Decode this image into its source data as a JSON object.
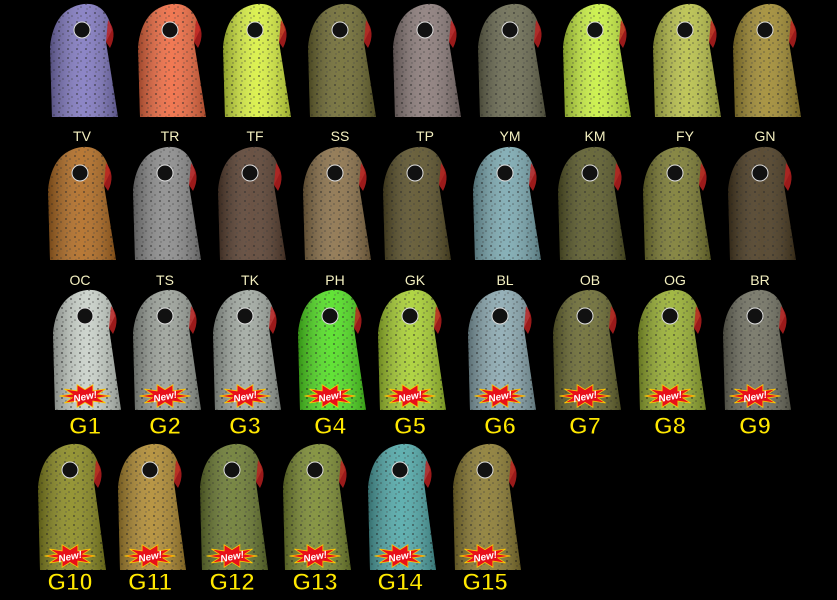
{
  "rows": [
    {
      "items": [
        {
          "label": "TV",
          "color": "#8078c0"
        },
        {
          "label": "TR",
          "color": "#f06a40"
        },
        {
          "label": "TF",
          "color": "#d8f040"
        },
        {
          "label": "SS",
          "color": "#6e6a30"
        },
        {
          "label": "TP",
          "color": "#8a7a78"
        },
        {
          "label": "YM",
          "color": "#6a6a50"
        },
        {
          "label": "KM",
          "color": "#c8f040"
        },
        {
          "label": "FY",
          "color": "#b8c048"
        },
        {
          "label": "GN",
          "color": "#a08a30"
        }
      ]
    },
    {
      "items": [
        {
          "label": "OC",
          "color": "#b06a20"
        },
        {
          "label": "TS",
          "color": "#8a8a8a"
        },
        {
          "label": "TK",
          "color": "#5a4030"
        },
        {
          "label": "PH",
          "color": "#8a7048"
        },
        {
          "label": "GK",
          "color": "#5a5028"
        },
        {
          "label": "BL",
          "color": "#7aa8b0"
        },
        {
          "label": "OB",
          "color": "#5a5a28"
        },
        {
          "label": "OG",
          "color": "#7a7a30"
        },
        {
          "label": "BR",
          "color": "#4a3a20"
        }
      ]
    },
    {
      "items": [
        {
          "label": "G1",
          "badge": "New!",
          "color": "#c8d0c8"
        },
        {
          "label": "G2",
          "badge": "New!",
          "color": "#9aa098"
        },
        {
          "label": "G3",
          "badge": "New!",
          "color": "#a0a8a0"
        },
        {
          "label": "G4",
          "badge": "New!",
          "color": "#50e020"
        },
        {
          "label": "G5",
          "badge": "New!",
          "color": "#a8d030"
        },
        {
          "label": "G6",
          "badge": "New!",
          "color": "#8aa8b0"
        },
        {
          "label": "G7",
          "badge": "New!",
          "color": "#6a6a30"
        },
        {
          "label": "G8",
          "badge": "New!",
          "color": "#98b030"
        },
        {
          "label": "G9",
          "badge": "New!",
          "color": "#707060"
        }
      ]
    },
    {
      "items": [
        {
          "label": "G10",
          "badge": "New!",
          "color": "#8a8a20"
        },
        {
          "label": "G11",
          "badge": "New!",
          "color": "#b08a30"
        },
        {
          "label": "G12",
          "badge": "New!",
          "color": "#6a7a30"
        },
        {
          "label": "G13",
          "badge": "New!",
          "color": "#7a8a30"
        },
        {
          "label": "G14",
          "badge": "New!",
          "color": "#50a8a8"
        },
        {
          "label": "G15",
          "badge": "New!",
          "color": "#8a7a30"
        }
      ]
    }
  ]
}
